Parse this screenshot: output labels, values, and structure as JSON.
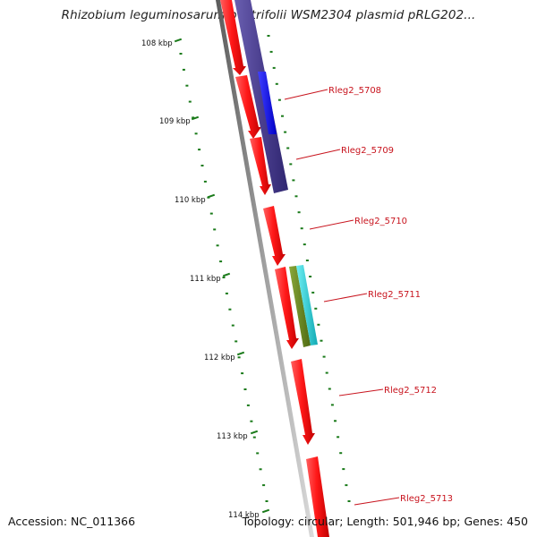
{
  "title": "Rhizobium leguminosarum bv. trifolii WSM2304 plasmid pRLG202...",
  "footer": {
    "accession": "Accession: NC_011366",
    "topology": "Topology: circular; Length: 501,946 bp; Genes: 450"
  },
  "scale": {
    "ticks": [
      "108 kbp",
      "109 kbp",
      "110 kbp",
      "111 kbp",
      "112 kbp",
      "113 kbp",
      "114 kbp"
    ]
  },
  "genes": [
    {
      "label": "Rleg2_5708"
    },
    {
      "label": "Rleg2_5709"
    },
    {
      "label": "Rleg2_5710"
    },
    {
      "label": "Rleg2_5711"
    },
    {
      "label": "Rleg2_5712"
    },
    {
      "label": "Rleg2_5713"
    }
  ],
  "colors": {
    "forward_cds": "#ff2020",
    "backbone": "#8c8c8c",
    "ticks": "#1a7a1a",
    "gene_label": "#c8141e",
    "feature_navy": "#4b3f8f",
    "feature_blue": "#1010ff",
    "feature_olive": "#6b8a1e",
    "feature_cyan": "#20d0d8"
  }
}
